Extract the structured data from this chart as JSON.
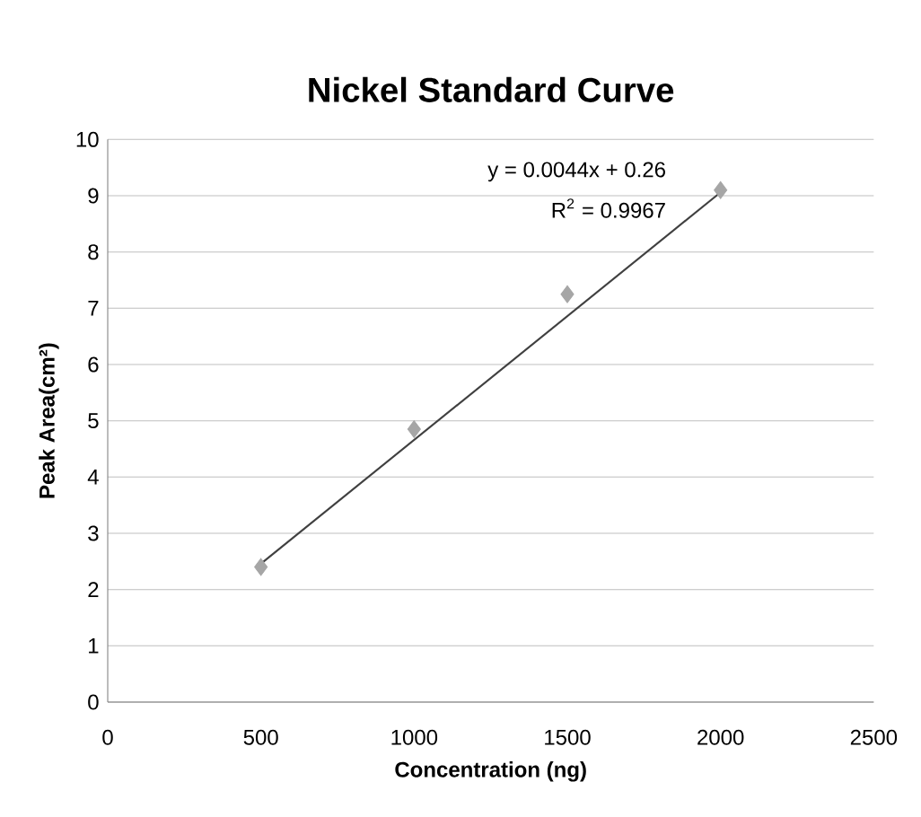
{
  "chart_data": {
    "type": "scatter",
    "title": "Nickel Standard Curve",
    "xlabel": "Concentration (ng)",
    "ylabel": "Peak Area(cm²)",
    "series": [
      {
        "color": "#a6a6a6",
        "marker": "diamond",
        "x": [
          500,
          1000,
          1500,
          2000
        ],
        "values": [
          2.4,
          4.85,
          7.25,
          9.1
        ]
      },
      {
        "type": "line",
        "color": "#404040",
        "marker": "none",
        "line_style": "solid",
        "x": [
          500,
          2000
        ],
        "values": [
          2.46,
          9.06
        ]
      }
    ],
    "annotations": [
      "y = 0.0044x + 0.26",
      "R$^{2}$ = 0.9967"
    ],
    "xlim": [
      0,
      2500
    ],
    "xticks": [
      0,
      500,
      1000,
      1500,
      2000,
      2500
    ],
    "ylim": [
      0,
      10
    ],
    "yticks": [
      0,
      1,
      2,
      3,
      4,
      5,
      6,
      7,
      8,
      9,
      10
    ],
    "grid": "y"
  }
}
